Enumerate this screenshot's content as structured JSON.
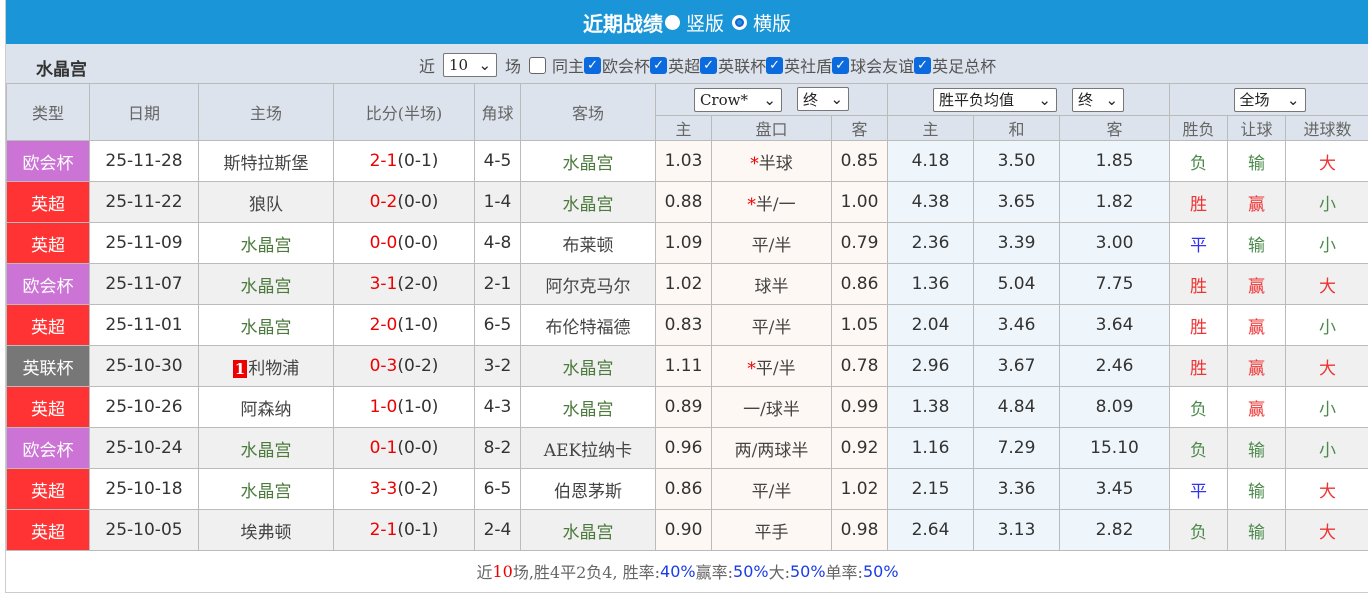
{
  "header": {
    "title": "近期战绩",
    "opt_vertical": "竖版",
    "opt_horizontal": "横版"
  },
  "filter": {
    "team": "水晶宫",
    "near": "近",
    "count": "10",
    "unit": "场",
    "same_home": "同主",
    "leagues": [
      "欧会杯",
      "英超",
      "英联杯",
      "英社盾",
      "球会友谊",
      "英足总杯"
    ]
  },
  "columns": {
    "type": "类型",
    "date": "日期",
    "home": "主场",
    "score": "比分(半场)",
    "corner": "角球",
    "away": "客场",
    "company": "Crow*",
    "final1": "终",
    "oddstype": "胜平负均值",
    "final2": "终",
    "full": "全场",
    "h": "主",
    "line": "盘口",
    "a": "客",
    "h2": "主",
    "d": "和",
    "a2": "客",
    "wl": "胜负",
    "hc": "让球",
    "goals": "进球数"
  },
  "colors": {
    "欧会杯": "#cc73d6",
    "英超": "#ff3333",
    "英联杯": "#777777",
    "header": "#1a96d8"
  },
  "rows": [
    {
      "type": "欧会杯",
      "date": "25-11-28",
      "home": "斯特拉斯堡",
      "ft": "2-1",
      "ht": "(0-1)",
      "corner": "4-5",
      "away": "水晶宫",
      "oh": "1.03",
      "line": "半球",
      "star": true,
      "oa": "0.85",
      "w": "4.18",
      "d": "3.50",
      "l": "1.85",
      "wl": "负",
      "hc": "输",
      "goals": "大"
    },
    {
      "type": "英超",
      "date": "25-11-22",
      "home": "狼队",
      "ft": "0-2",
      "ht": "(0-0)",
      "corner": "1-4",
      "away": "水晶宫",
      "oh": "0.88",
      "line": "半/一",
      "star": true,
      "oa": "1.00",
      "w": "4.38",
      "d": "3.65",
      "l": "1.82",
      "wl": "胜",
      "hc": "赢",
      "goals": "小"
    },
    {
      "type": "英超",
      "date": "25-11-09",
      "home": "水晶宫",
      "ft": "0-0",
      "ht": "(0-0)",
      "corner": "4-8",
      "away": "布莱顿",
      "oh": "1.09",
      "line": "平/半",
      "oa": "0.79",
      "w": "2.36",
      "d": "3.39",
      "l": "3.00",
      "wl": "平",
      "hc": "输",
      "goals": "小"
    },
    {
      "type": "欧会杯",
      "date": "25-11-07",
      "home": "水晶宫",
      "ft": "3-1",
      "ht": "(2-0)",
      "corner": "2-1",
      "away": "阿尔克马尔",
      "oh": "1.02",
      "line": "球半",
      "oa": "0.86",
      "w": "1.36",
      "d": "5.04",
      "l": "7.75",
      "wl": "胜",
      "hc": "赢",
      "goals": "大"
    },
    {
      "type": "英超",
      "date": "25-11-01",
      "home": "水晶宫",
      "ft": "2-0",
      "ht": "(1-0)",
      "corner": "6-5",
      "away": "布伦特福德",
      "oh": "0.83",
      "line": "平/半",
      "oa": "1.05",
      "w": "2.04",
      "d": "3.46",
      "l": "3.64",
      "wl": "胜",
      "hc": "赢",
      "goals": "小"
    },
    {
      "type": "英联杯",
      "date": "25-10-30",
      "home": "利物浦",
      "badge": "1",
      "ft": "0-3",
      "ht": "(0-2)",
      "corner": "3-2",
      "away": "水晶宫",
      "oh": "1.11",
      "line": "平/半",
      "star": true,
      "oa": "0.78",
      "w": "2.96",
      "d": "3.67",
      "l": "2.46",
      "wl": "胜",
      "hc": "赢",
      "goals": "大"
    },
    {
      "type": "英超",
      "date": "25-10-26",
      "home": "阿森纳",
      "ft": "1-0",
      "ht": "(1-0)",
      "corner": "4-3",
      "away": "水晶宫",
      "oh": "0.89",
      "line": "一/球半",
      "oa": "0.99",
      "w": "1.38",
      "d": "4.84",
      "l": "8.09",
      "wl": "负",
      "hc": "赢",
      "goals": "小"
    },
    {
      "type": "欧会杯",
      "date": "25-10-24",
      "home": "水晶宫",
      "ft": "0-1",
      "ht": "(0-0)",
      "corner": "8-2",
      "away": "AEK拉纳卡",
      "oh": "0.96",
      "line": "两/两球半",
      "oa": "0.92",
      "w": "1.16",
      "d": "7.29",
      "l": "15.10",
      "wl": "负",
      "hc": "输",
      "goals": "小"
    },
    {
      "type": "英超",
      "date": "25-10-18",
      "home": "水晶宫",
      "ft": "3-3",
      "ht": "(0-2)",
      "corner": "6-5",
      "away": "伯恩茅斯",
      "oh": "0.86",
      "line": "平/半",
      "oa": "1.02",
      "w": "2.15",
      "d": "3.36",
      "l": "3.45",
      "wl": "平",
      "hc": "输",
      "goals": "大"
    },
    {
      "type": "英超",
      "date": "25-10-05",
      "home": "埃弗顿",
      "ft": "2-1",
      "ht": "(0-1)",
      "corner": "2-4",
      "away": "水晶宫",
      "oh": "0.90",
      "line": "平手",
      "oa": "0.98",
      "w": "2.64",
      "d": "3.13",
      "l": "2.82",
      "wl": "负",
      "hc": "输",
      "goals": "大"
    }
  ],
  "summary": {
    "p1": "近",
    "n": "10",
    "p2": "场,胜4平2负4, 胜率:",
    "win": "40%",
    "p3": " 赢率:",
    "cover": "50%",
    "p4": " 大:",
    "over": "50%",
    "p5": " 单率:",
    "odd": "50%"
  }
}
